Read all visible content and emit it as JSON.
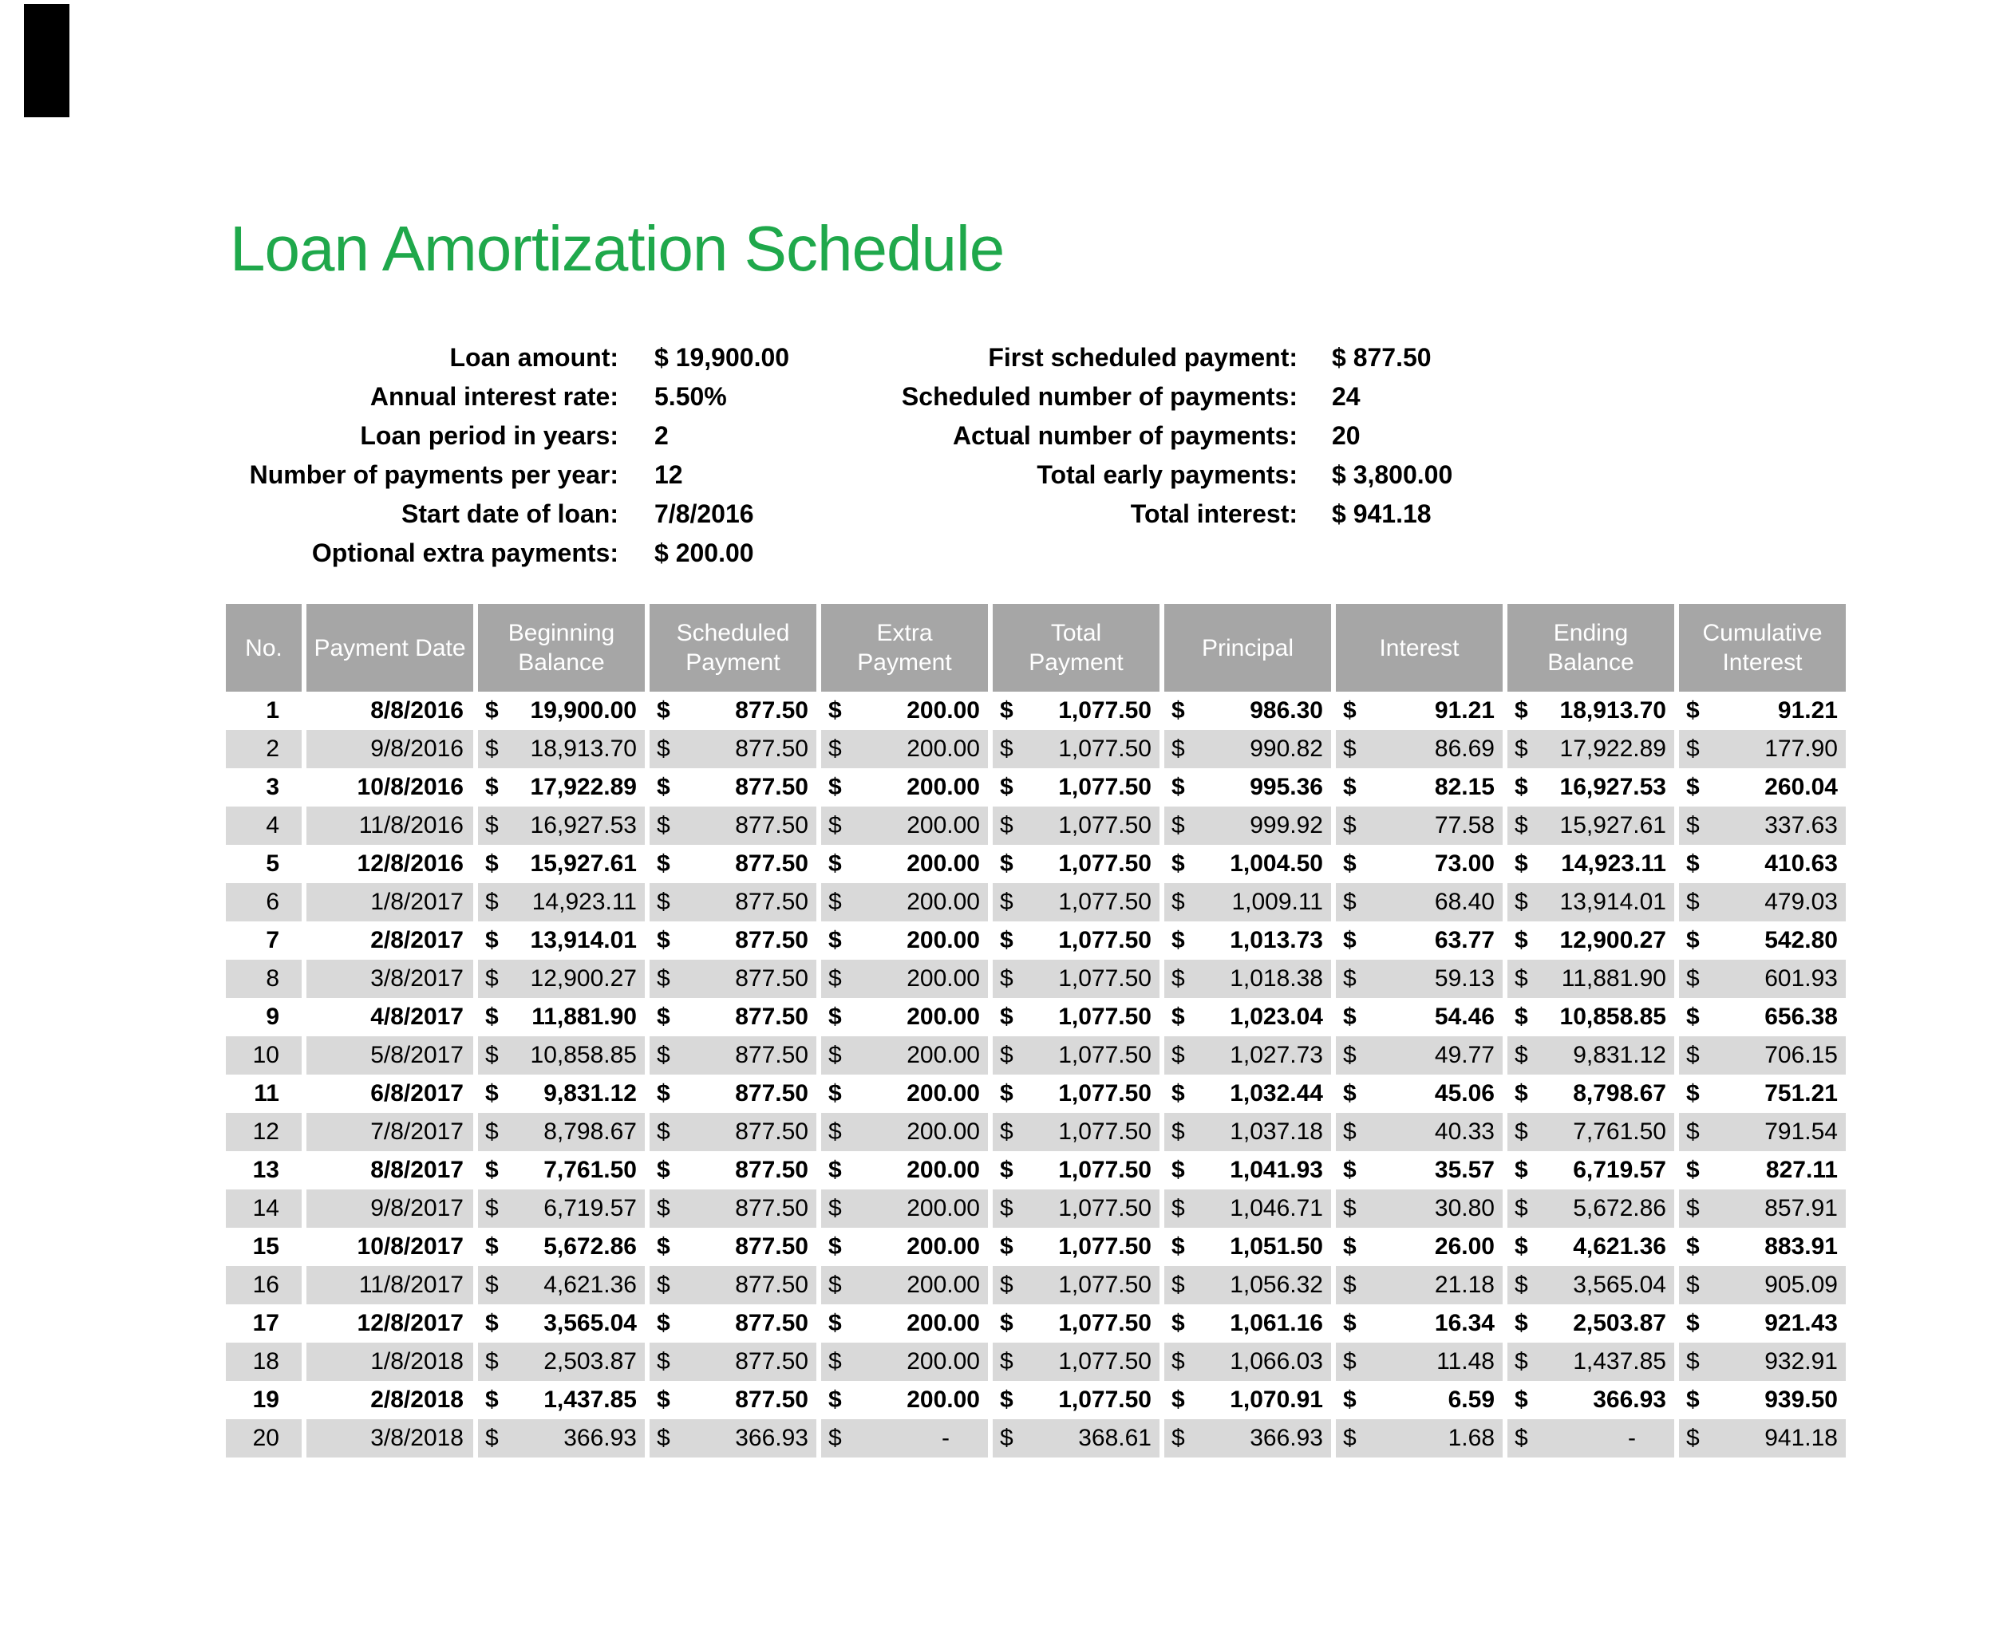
{
  "title": "Loan Amortization Schedule",
  "colors": {
    "title_green": "#1fa84b",
    "table_header_bg": "#a6a6a6",
    "row_alt_bg": "#d9d9d9"
  },
  "params_left": [
    {
      "label": "Loan amount:",
      "value": "$ 19,900.00"
    },
    {
      "label": "Annual interest rate:",
      "value": "5.50%"
    },
    {
      "label": "Loan period in years:",
      "value": "2"
    },
    {
      "label": "Number of payments per year:",
      "value": "12"
    },
    {
      "label": "Start date of loan:",
      "value": "7/8/2016"
    },
    {
      "label": "Optional extra payments:",
      "value": "$ 200.00"
    }
  ],
  "params_right": [
    {
      "label": "First scheduled payment:",
      "value": "$ 877.50"
    },
    {
      "label": "Scheduled number of payments:",
      "value": "24"
    },
    {
      "label": "Actual number of payments:",
      "value": "20"
    },
    {
      "label": "Total early payments:",
      "value": "$ 3,800.00"
    },
    {
      "label": "Total interest:",
      "value": "$ 941.18"
    }
  ],
  "table": {
    "currency_symbol": "$",
    "headers": [
      "No.",
      "Payment Date",
      "Beginning\nBalance",
      "Scheduled\nPayment",
      "Extra\nPayment",
      "Total\nPayment",
      "Principal",
      "Interest",
      "Ending\nBalance",
      "Cumulative\nInterest"
    ],
    "rows": [
      {
        "no": "1",
        "date": "8/8/2016",
        "beginning": "19,900.00",
        "scheduled": "877.50",
        "extra": "200.00",
        "total": "1,077.50",
        "principal": "986.30",
        "interest": "91.21",
        "ending": "18,913.70",
        "cumulative": "91.21"
      },
      {
        "no": "2",
        "date": "9/8/2016",
        "beginning": "18,913.70",
        "scheduled": "877.50",
        "extra": "200.00",
        "total": "1,077.50",
        "principal": "990.82",
        "interest": "86.69",
        "ending": "17,922.89",
        "cumulative": "177.90"
      },
      {
        "no": "3",
        "date": "10/8/2016",
        "beginning": "17,922.89",
        "scheduled": "877.50",
        "extra": "200.00",
        "total": "1,077.50",
        "principal": "995.36",
        "interest": "82.15",
        "ending": "16,927.53",
        "cumulative": "260.04"
      },
      {
        "no": "4",
        "date": "11/8/2016",
        "beginning": "16,927.53",
        "scheduled": "877.50",
        "extra": "200.00",
        "total": "1,077.50",
        "principal": "999.92",
        "interest": "77.58",
        "ending": "15,927.61",
        "cumulative": "337.63"
      },
      {
        "no": "5",
        "date": "12/8/2016",
        "beginning": "15,927.61",
        "scheduled": "877.50",
        "extra": "200.00",
        "total": "1,077.50",
        "principal": "1,004.50",
        "interest": "73.00",
        "ending": "14,923.11",
        "cumulative": "410.63"
      },
      {
        "no": "6",
        "date": "1/8/2017",
        "beginning": "14,923.11",
        "scheduled": "877.50",
        "extra": "200.00",
        "total": "1,077.50",
        "principal": "1,009.11",
        "interest": "68.40",
        "ending": "13,914.01",
        "cumulative": "479.03"
      },
      {
        "no": "7",
        "date": "2/8/2017",
        "beginning": "13,914.01",
        "scheduled": "877.50",
        "extra": "200.00",
        "total": "1,077.50",
        "principal": "1,013.73",
        "interest": "63.77",
        "ending": "12,900.27",
        "cumulative": "542.80"
      },
      {
        "no": "8",
        "date": "3/8/2017",
        "beginning": "12,900.27",
        "scheduled": "877.50",
        "extra": "200.00",
        "total": "1,077.50",
        "principal": "1,018.38",
        "interest": "59.13",
        "ending": "11,881.90",
        "cumulative": "601.93"
      },
      {
        "no": "9",
        "date": "4/8/2017",
        "beginning": "11,881.90",
        "scheduled": "877.50",
        "extra": "200.00",
        "total": "1,077.50",
        "principal": "1,023.04",
        "interest": "54.46",
        "ending": "10,858.85",
        "cumulative": "656.38"
      },
      {
        "no": "10",
        "date": "5/8/2017",
        "beginning": "10,858.85",
        "scheduled": "877.50",
        "extra": "200.00",
        "total": "1,077.50",
        "principal": "1,027.73",
        "interest": "49.77",
        "ending": "9,831.12",
        "cumulative": "706.15"
      },
      {
        "no": "11",
        "date": "6/8/2017",
        "beginning": "9,831.12",
        "scheduled": "877.50",
        "extra": "200.00",
        "total": "1,077.50",
        "principal": "1,032.44",
        "interest": "45.06",
        "ending": "8,798.67",
        "cumulative": "751.21"
      },
      {
        "no": "12",
        "date": "7/8/2017",
        "beginning": "8,798.67",
        "scheduled": "877.50",
        "extra": "200.00",
        "total": "1,077.50",
        "principal": "1,037.18",
        "interest": "40.33",
        "ending": "7,761.50",
        "cumulative": "791.54"
      },
      {
        "no": "13",
        "date": "8/8/2017",
        "beginning": "7,761.50",
        "scheduled": "877.50",
        "extra": "200.00",
        "total": "1,077.50",
        "principal": "1,041.93",
        "interest": "35.57",
        "ending": "6,719.57",
        "cumulative": "827.11"
      },
      {
        "no": "14",
        "date": "9/8/2017",
        "beginning": "6,719.57",
        "scheduled": "877.50",
        "extra": "200.00",
        "total": "1,077.50",
        "principal": "1,046.71",
        "interest": "30.80",
        "ending": "5,672.86",
        "cumulative": "857.91"
      },
      {
        "no": "15",
        "date": "10/8/2017",
        "beginning": "5,672.86",
        "scheduled": "877.50",
        "extra": "200.00",
        "total": "1,077.50",
        "principal": "1,051.50",
        "interest": "26.00",
        "ending": "4,621.36",
        "cumulative": "883.91"
      },
      {
        "no": "16",
        "date": "11/8/2017",
        "beginning": "4,621.36",
        "scheduled": "877.50",
        "extra": "200.00",
        "total": "1,077.50",
        "principal": "1,056.32",
        "interest": "21.18",
        "ending": "3,565.04",
        "cumulative": "905.09"
      },
      {
        "no": "17",
        "date": "12/8/2017",
        "beginning": "3,565.04",
        "scheduled": "877.50",
        "extra": "200.00",
        "total": "1,077.50",
        "principal": "1,061.16",
        "interest": "16.34",
        "ending": "2,503.87",
        "cumulative": "921.43"
      },
      {
        "no": "18",
        "date": "1/8/2018",
        "beginning": "2,503.87",
        "scheduled": "877.50",
        "extra": "200.00",
        "total": "1,077.50",
        "principal": "1,066.03",
        "interest": "11.48",
        "ending": "1,437.85",
        "cumulative": "932.91"
      },
      {
        "no": "19",
        "date": "2/8/2018",
        "beginning": "1,437.85",
        "scheduled": "877.50",
        "extra": "200.00",
        "total": "1,077.50",
        "principal": "1,070.91",
        "interest": "6.59",
        "ending": "366.93",
        "cumulative": "939.50"
      },
      {
        "no": "20",
        "date": "3/8/2018",
        "beginning": "366.93",
        "scheduled": "366.93",
        "extra": "-",
        "total": "368.61",
        "principal": "366.93",
        "interest": "1.68",
        "ending": "-",
        "cumulative": "941.18"
      }
    ]
  }
}
